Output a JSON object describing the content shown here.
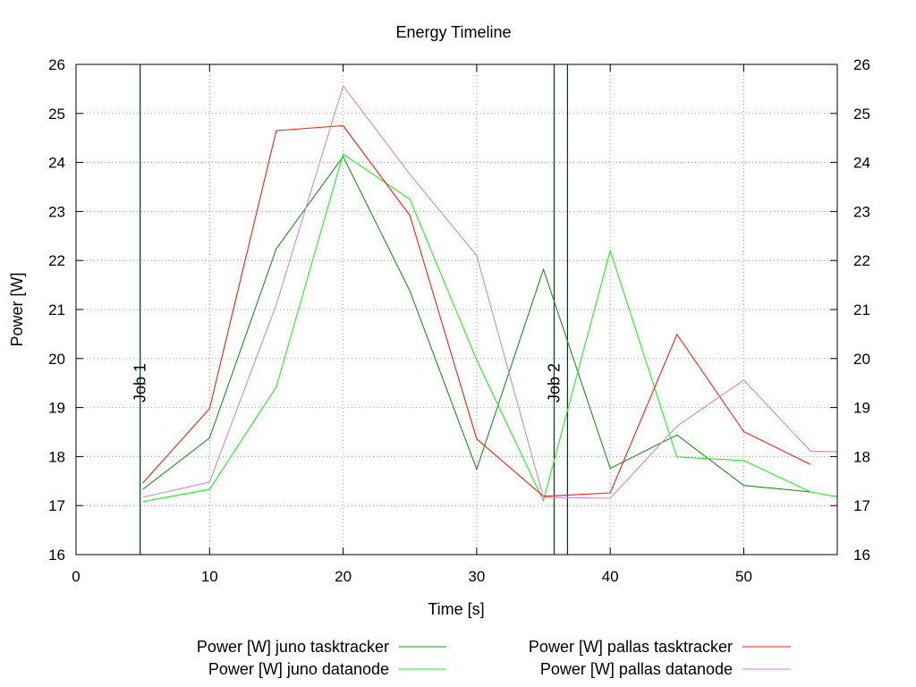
{
  "chart_data": {
    "type": "line",
    "title": "Energy Timeline",
    "xlabel": "Time [s]",
    "ylabel": "Power [W]",
    "xlim": [
      0,
      57
    ],
    "ylim": [
      16,
      26
    ],
    "x_ticks": [
      0,
      10,
      20,
      30,
      40,
      50
    ],
    "y_ticks": [
      16,
      17,
      18,
      19,
      20,
      21,
      22,
      23,
      24,
      25,
      26
    ],
    "y2_ticks": [
      16,
      17,
      18,
      19,
      20,
      21,
      22,
      23,
      24,
      25,
      26
    ],
    "grid": true,
    "legend_position": "bottom",
    "series": [
      {
        "name": "Power [W] juno tasktracker",
        "color": "#228b22",
        "x": [
          5,
          10,
          15,
          20,
          25,
          30,
          35,
          40,
          45,
          50,
          55
        ],
        "values": [
          17.33,
          18.38,
          22.24,
          24.12,
          21.38,
          17.74,
          21.82,
          17.76,
          18.44,
          17.41,
          17.28
        ]
      },
      {
        "name": "Power [W] juno datanode",
        "color": "#22ee22",
        "x": [
          5,
          10,
          15,
          20,
          25,
          30,
          35,
          40,
          45,
          50,
          55,
          57
        ],
        "values": [
          17.08,
          17.33,
          19.42,
          24.17,
          23.25,
          19.97,
          17.1,
          22.2,
          17.99,
          17.92,
          17.28,
          17.18
        ]
      },
      {
        "name": "Power [W] pallas tasktracker",
        "color": "#ee2211",
        "x": [
          5,
          10,
          15,
          20,
          25,
          30,
          35,
          40,
          45,
          50,
          55
        ],
        "values": [
          17.46,
          18.98,
          24.65,
          24.75,
          22.92,
          18.36,
          17.19,
          17.26,
          20.49,
          18.51,
          17.84
        ]
      },
      {
        "name": "Power [W] pallas datanode",
        "color": "#cc88cc",
        "x": [
          5,
          10,
          15,
          20,
          25,
          30,
          35,
          40,
          45,
          50,
          55,
          57
        ],
        "values": [
          17.17,
          17.48,
          21.1,
          25.56,
          23.76,
          22.1,
          17.17,
          17.15,
          18.62,
          19.56,
          18.11,
          18.1
        ]
      }
    ],
    "markers": [
      {
        "label": "Job 1",
        "x": 4.8
      },
      {
        "label": "Job 2",
        "x": 35.8
      },
      {
        "label": "",
        "x": 36.8
      }
    ]
  }
}
